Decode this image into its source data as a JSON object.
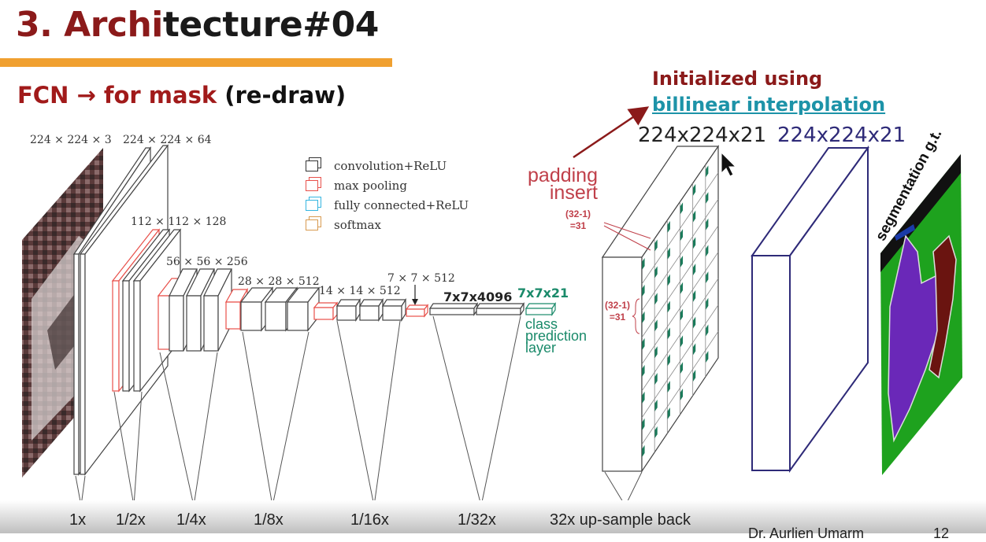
{
  "slide": {
    "title_accent": "3. Archi",
    "title_rest": "tecture#04",
    "subtitle_red": "FCN → for mask",
    "subtitle_black": "(re-draw)",
    "page_number": "12",
    "author": "Dr. Aurlien Umarm"
  },
  "annotations": {
    "init_line1": "Initialized using",
    "init_line2": "billinear interpolation",
    "upsampled_dim": "224x224x21",
    "gt_dim": "224x224x21",
    "padding_line1": "padding",
    "padding_line2": "insert",
    "pad_top_l1": "(32-1)",
    "pad_top_l2": "=31",
    "pad_mid_l1": "(32-1)",
    "pad_mid_l2": "=31",
    "seg_gt": "segmentation g.t.",
    "class_pred_l1": "class",
    "class_pred_l2": "prediction",
    "class_pred_l3": "layer"
  },
  "legend": [
    {
      "label": "convolution+ReLU",
      "color": "#333333"
    },
    {
      "label": "max pooling",
      "color": "#e8504a"
    },
    {
      "label": "fully connected+ReLU",
      "color": "#35b5e0"
    },
    {
      "label": "softmax",
      "color": "#d89a50"
    }
  ],
  "layer_dims": {
    "d1": "224 × 224 × 3",
    "d2": "224 × 224 × 64",
    "d3": "112 × 112 × 128",
    "d4": "56 × 56 × 256",
    "d5": "28 × 28 × 512",
    "d6": "14 × 14 × 512",
    "d7": "7 × 7 × 512",
    "d8": "7x7x4096",
    "d9": "7x7x21"
  },
  "scales": [
    "1x",
    "1/2x",
    "1/4x",
    "1/8x",
    "1/16x",
    "1/32x",
    "32x up-sample back"
  ],
  "colors": {
    "title_accent": "#8b1a1a",
    "title_rule": "#f0a030",
    "link_teal": "#1d93a8",
    "pad_red": "#c0404a",
    "class_green": "#1a8a6a",
    "gt_box_navy": "#2e2a78",
    "seg_purple": "#6a28b8",
    "seg_maroon": "#6a1410",
    "seg_green": "#1ea21e"
  }
}
